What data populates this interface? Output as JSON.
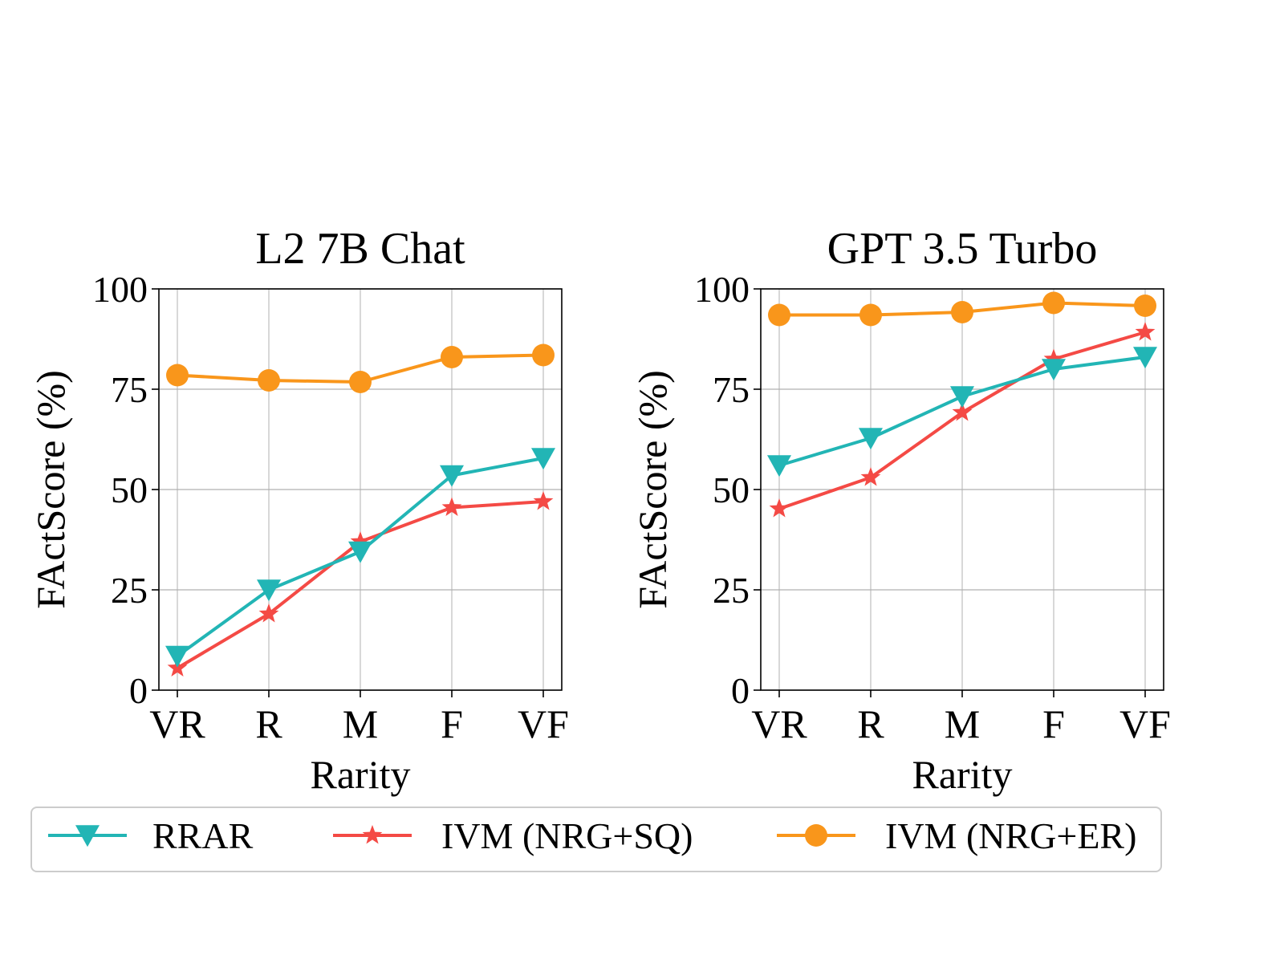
{
  "colors": {
    "rrar": "#22b5b5",
    "ivm_sq": "#f44a45",
    "ivm_er": "#f9961b",
    "grid": "#b0b0b0",
    "axis": "#000000",
    "legend_border": "#cccccc"
  },
  "legend": {
    "entries": [
      {
        "label": "RRAR",
        "marker": "triangle-down",
        "color_key": "rrar"
      },
      {
        "label": "IVM (NRG+SQ)",
        "marker": "star",
        "color_key": "ivm_sq"
      },
      {
        "label": "IVM (NRG+ER)",
        "marker": "circle",
        "color_key": "ivm_er"
      }
    ]
  },
  "chart_data": [
    {
      "type": "line",
      "title": "L2 7B Chat",
      "xlabel": "Rarity",
      "ylabel": "FActScore (%)",
      "categories": [
        "VR",
        "R",
        "M",
        "F",
        "VF"
      ],
      "ylim": [
        0,
        100
      ],
      "yticks": [
        0,
        25,
        50,
        75,
        100
      ],
      "grid": true,
      "series": [
        {
          "name": "RRAR",
          "marker": "triangle-down",
          "values": [
            8.5,
            25.0,
            34.5,
            53.5,
            57.8
          ]
        },
        {
          "name": "IVM (NRG+SQ)",
          "marker": "star",
          "values": [
            5.5,
            19.0,
            37.0,
            45.5,
            47.0
          ]
        },
        {
          "name": "IVM (NRG+ER)",
          "marker": "circle",
          "values": [
            78.5,
            77.2,
            76.8,
            83.0,
            83.5
          ]
        }
      ]
    },
    {
      "type": "line",
      "title": "GPT 3.5 Turbo",
      "xlabel": "Rarity",
      "ylabel": "FActScore (%)",
      "categories": [
        "VR",
        "R",
        "M",
        "F",
        "VF"
      ],
      "ylim": [
        0,
        100
      ],
      "yticks": [
        0,
        25,
        50,
        75,
        100
      ],
      "grid": true,
      "series": [
        {
          "name": "RRAR",
          "marker": "triangle-down",
          "values": [
            56.0,
            62.8,
            73.2,
            80.0,
            83.0
          ]
        },
        {
          "name": "IVM (NRG+SQ)",
          "marker": "star",
          "values": [
            45.2,
            53.0,
            69.2,
            82.5,
            89.2
          ]
        },
        {
          "name": "IVM (NRG+ER)",
          "marker": "circle",
          "values": [
            93.5,
            93.5,
            94.2,
            96.5,
            95.8
          ]
        }
      ]
    }
  ]
}
